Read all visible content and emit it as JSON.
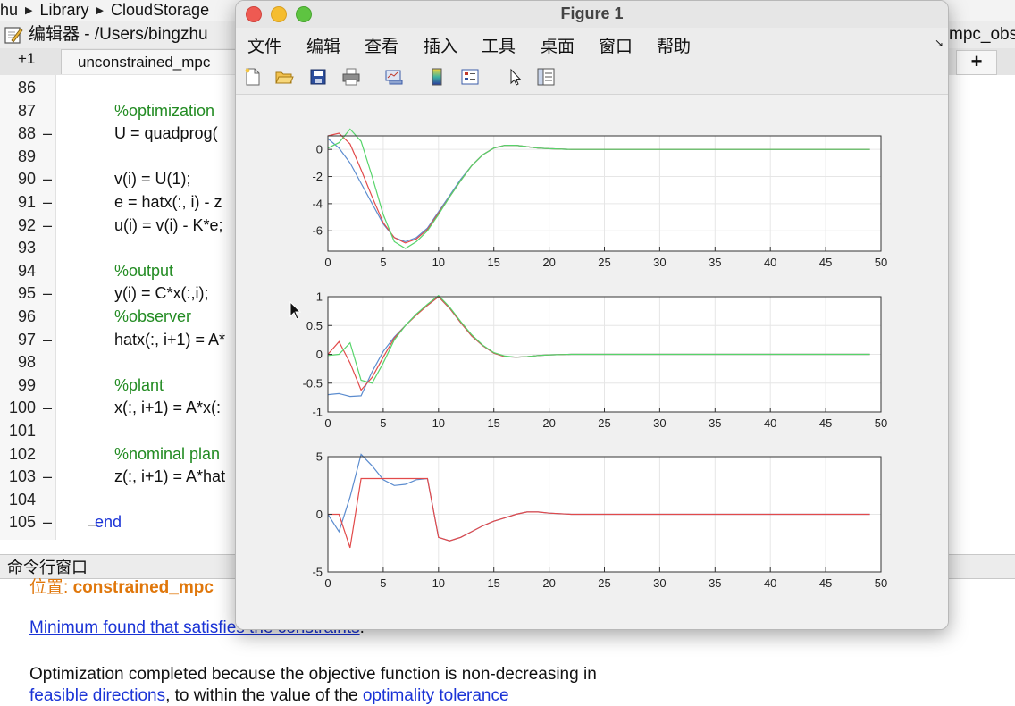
{
  "breadcrumb": [
    "hu",
    "Library",
    "CloudStorage"
  ],
  "editor": {
    "title": "编辑器 - /Users/bingzhu",
    "right_title": "mpc_obs",
    "tab_prev": "+1",
    "tab_file": "unconstrained_mpc",
    "tab_add": "+"
  },
  "code_lines": [
    {
      "n": "86",
      "dash": "",
      "text": "",
      "kind": "code"
    },
    {
      "n": "87",
      "dash": "",
      "text": "%optimization",
      "kind": "comment"
    },
    {
      "n": "88",
      "dash": "–",
      "text": "U = quadprog(",
      "kind": "code"
    },
    {
      "n": "89",
      "dash": "",
      "text": "",
      "kind": "code"
    },
    {
      "n": "90",
      "dash": "–",
      "text": "v(i) = U(1);",
      "kind": "code"
    },
    {
      "n": "91",
      "dash": "–",
      "text": "e = hatx(:, i) - z",
      "kind": "code"
    },
    {
      "n": "92",
      "dash": "–",
      "text": "u(i) = v(i) - K*e;",
      "kind": "code"
    },
    {
      "n": "93",
      "dash": "",
      "text": "",
      "kind": "code"
    },
    {
      "n": "94",
      "dash": "",
      "text": "%output",
      "kind": "comment"
    },
    {
      "n": "95",
      "dash": "–",
      "text": "y(i) = C*x(:,i);",
      "kind": "code"
    },
    {
      "n": "96",
      "dash": "",
      "text": "%observer",
      "kind": "comment"
    },
    {
      "n": "97",
      "dash": "–",
      "text": "hatx(:, i+1) = A*",
      "kind": "code"
    },
    {
      "n": "98",
      "dash": "",
      "text": "",
      "kind": "code"
    },
    {
      "n": "99",
      "dash": "",
      "text": "%plant",
      "kind": "comment"
    },
    {
      "n": "100",
      "dash": "–",
      "text": "x(:, i+1)  = A*x(:",
      "kind": "code"
    },
    {
      "n": "101",
      "dash": "",
      "text": "",
      "kind": "code"
    },
    {
      "n": "102",
      "dash": "",
      "text": "%nominal plan",
      "kind": "comment"
    },
    {
      "n": "103",
      "dash": "–",
      "text": "z(:, i+1) = A*hat",
      "kind": "code"
    },
    {
      "n": "104",
      "dash": "",
      "text": "",
      "kind": "code"
    },
    {
      "n": "105",
      "dash": "–",
      "text": "end",
      "kind": "kw"
    }
  ],
  "command_window": {
    "header": "命令行窗口",
    "location_prefix": "位置: ",
    "location_file": "constrained_mpc",
    "min_found": "Minimum found that satisfies the constraints",
    "min_found_tail": ".",
    "completed": "Optimization completed because the objective function is non-decreasing in",
    "feasible_link": "feasible directions",
    "within": ", to within the value of the ",
    "optimality_link": "optimality tolerance"
  },
  "figure": {
    "title": "Figure 1",
    "menu": [
      "文件",
      "编辑",
      "查看",
      "插入",
      "工具",
      "桌面",
      "窗口",
      "帮助"
    ],
    "toolbar_icons": [
      "new-file-icon",
      "open-folder-icon",
      "save-icon",
      "print-icon",
      "link-plot-icon",
      "colorbar-icon",
      "legend-icon",
      "pointer-icon",
      "property-editor-icon"
    ]
  },
  "colors": {
    "series_blue": "#5b8ccf",
    "series_red": "#e24a4a",
    "series_green": "#56d46a",
    "comment_green": "#228b22",
    "keyword_blue": "#1a33d6",
    "orange": "#e0770b"
  },
  "chart_data": [
    {
      "type": "line",
      "xlim": [
        0,
        50
      ],
      "ylim": [
        -7.5,
        1
      ],
      "xticks": [
        0,
        5,
        10,
        15,
        20,
        25,
        30,
        35,
        40,
        45,
        50
      ],
      "yticks": [
        0,
        -2,
        -4,
        -6
      ],
      "grid": true,
      "series": [
        {
          "color": "#5b8ccf",
          "x": [
            0,
            1,
            2,
            3,
            4,
            5,
            6,
            7,
            8,
            9,
            10,
            11,
            12,
            13,
            14,
            15,
            16,
            17,
            18,
            19,
            20,
            22,
            25,
            30,
            35,
            40,
            45,
            49
          ],
          "y": [
            0.8,
            0.1,
            -1.0,
            -2.5,
            -4.0,
            -5.5,
            -6.5,
            -6.8,
            -6.5,
            -5.8,
            -4.6,
            -3.4,
            -2.2,
            -1.2,
            -0.4,
            0.1,
            0.3,
            0.3,
            0.2,
            0.1,
            0.05,
            0,
            0,
            0,
            0,
            0,
            0,
            0
          ]
        },
        {
          "color": "#e24a4a",
          "x": [
            0,
            1,
            2,
            3,
            4,
            5,
            6,
            7,
            8,
            9,
            10,
            11,
            12,
            13,
            14,
            15,
            16,
            17,
            18,
            19,
            20,
            22,
            25,
            30,
            35,
            40,
            45,
            49
          ],
          "y": [
            1.0,
            1.2,
            0.4,
            -1.5,
            -3.5,
            -5.4,
            -6.5,
            -6.9,
            -6.6,
            -5.9,
            -4.7,
            -3.5,
            -2.3,
            -1.2,
            -0.4,
            0.1,
            0.3,
            0.3,
            0.2,
            0.1,
            0.05,
            0,
            0,
            0,
            0,
            0,
            0,
            0
          ]
        },
        {
          "color": "#56d46a",
          "x": [
            0,
            1,
            2,
            3,
            4,
            5,
            6,
            7,
            8,
            9,
            10,
            11,
            12,
            13,
            14,
            15,
            16,
            17,
            18,
            19,
            20,
            22,
            25,
            30,
            35,
            40,
            45,
            49
          ],
          "y": [
            0.1,
            0.5,
            1.5,
            0.6,
            -2.0,
            -4.8,
            -6.8,
            -7.3,
            -6.8,
            -6.0,
            -4.8,
            -3.5,
            -2.3,
            -1.2,
            -0.4,
            0.1,
            0.3,
            0.3,
            0.2,
            0.1,
            0.05,
            0,
            0,
            0,
            0,
            0,
            0,
            0
          ]
        }
      ]
    },
    {
      "type": "line",
      "xlim": [
        0,
        50
      ],
      "ylim": [
        -1,
        1
      ],
      "xticks": [
        0,
        5,
        10,
        15,
        20,
        25,
        30,
        35,
        40,
        45,
        50
      ],
      "yticks": [
        1,
        0.5,
        0,
        -0.5,
        -1
      ],
      "ytick_labels": [
        "1",
        "0.5",
        "0",
        "-0.5",
        "-1"
      ],
      "grid": true,
      "series": [
        {
          "color": "#5b8ccf",
          "x": [
            0,
            1,
            2,
            3,
            4,
            5,
            6,
            7,
            8,
            9,
            10,
            11,
            12,
            13,
            14,
            15,
            16,
            17,
            18,
            19,
            20,
            22,
            25,
            30,
            35,
            40,
            45,
            49
          ],
          "y": [
            -0.7,
            -0.68,
            -0.73,
            -0.72,
            -0.3,
            0.05,
            0.3,
            0.5,
            0.7,
            0.85,
            1.0,
            0.8,
            0.55,
            0.32,
            0.15,
            0.02,
            -0.04,
            -0.05,
            -0.04,
            -0.02,
            -0.01,
            0,
            0,
            0,
            0,
            0,
            0,
            0
          ]
        },
        {
          "color": "#e24a4a",
          "x": [
            0,
            1,
            2,
            3,
            4,
            5,
            6,
            7,
            8,
            9,
            10,
            11,
            12,
            13,
            14,
            15,
            16,
            17,
            18,
            19,
            20,
            22,
            25,
            30,
            35,
            40,
            45,
            49
          ],
          "y": [
            0.0,
            0.22,
            -0.15,
            -0.62,
            -0.4,
            -0.05,
            0.28,
            0.5,
            0.68,
            0.85,
            1.0,
            0.8,
            0.55,
            0.32,
            0.15,
            0.02,
            -0.04,
            -0.05,
            -0.04,
            -0.02,
            -0.01,
            0,
            0,
            0,
            0,
            0,
            0,
            0
          ]
        },
        {
          "color": "#56d46a",
          "x": [
            0,
            1,
            2,
            3,
            4,
            5,
            6,
            7,
            8,
            9,
            10,
            11,
            12,
            13,
            14,
            15,
            16,
            17,
            18,
            19,
            20,
            22,
            25,
            30,
            35,
            40,
            45,
            49
          ],
          "y": [
            -0.02,
            0.0,
            0.2,
            -0.45,
            -0.5,
            -0.15,
            0.25,
            0.5,
            0.7,
            0.87,
            1.02,
            0.82,
            0.57,
            0.34,
            0.16,
            0.03,
            -0.03,
            -0.05,
            -0.04,
            -0.02,
            -0.01,
            0,
            0,
            0,
            0,
            0,
            0,
            0
          ]
        }
      ]
    },
    {
      "type": "line",
      "xlim": [
        0,
        50
      ],
      "ylim": [
        -5,
        5
      ],
      "xticks": [
        0,
        5,
        10,
        15,
        20,
        25,
        30,
        35,
        40,
        45,
        50
      ],
      "yticks": [
        5,
        0,
        -5
      ],
      "grid": true,
      "series": [
        {
          "color": "#5b8ccf",
          "x": [
            0,
            1,
            2,
            3,
            4,
            5,
            6,
            7,
            8,
            9,
            10,
            11,
            12,
            13,
            14,
            15,
            16,
            17,
            18,
            19,
            20,
            22,
            25,
            30,
            35,
            40,
            45,
            49
          ],
          "y": [
            0.0,
            -1.5,
            1.5,
            5.2,
            4.2,
            3.0,
            2.5,
            2.6,
            3.0,
            3.1,
            -2.0,
            -2.3,
            -2.0,
            -1.5,
            -1.0,
            -0.6,
            -0.3,
            0.0,
            0.2,
            0.2,
            0.1,
            0,
            0,
            0,
            0,
            0,
            0,
            0
          ]
        },
        {
          "color": "#e24a4a",
          "x": [
            0,
            1,
            2,
            3,
            4,
            5,
            6,
            7,
            8,
            9,
            10,
            11,
            12,
            13,
            14,
            15,
            16,
            17,
            18,
            19,
            20,
            22,
            25,
            30,
            35,
            40,
            45,
            49
          ],
          "y": [
            0.0,
            0.0,
            -2.9,
            3.1,
            3.1,
            3.1,
            3.1,
            3.1,
            3.1,
            3.1,
            -2.0,
            -2.3,
            -2.0,
            -1.5,
            -1.0,
            -0.6,
            -0.3,
            0.0,
            0.2,
            0.2,
            0.1,
            0,
            0,
            0,
            0,
            0,
            0,
            0
          ]
        }
      ]
    }
  ]
}
